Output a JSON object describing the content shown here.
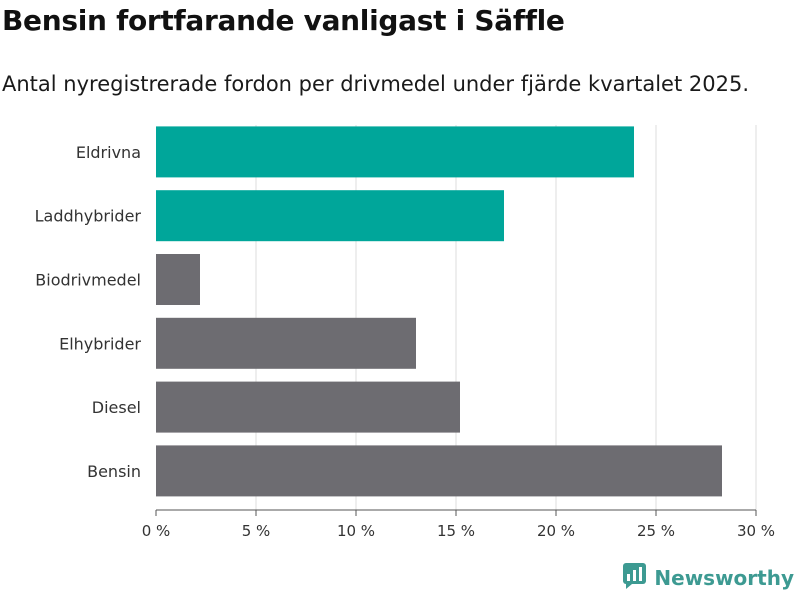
{
  "header": {
    "title": "Bensin fortfarande vanligast i Säffle",
    "subtitle": "Antal nyregistrerade fordon per drivmedel under fjärde kvartalet 2025."
  },
  "brand": {
    "name": "Newsworthy",
    "icon": "newsworthy-logo-icon"
  },
  "colors": {
    "highlight": "#00a69a",
    "default": "#6d6c71",
    "grid": "#dcdcdc",
    "axis": "#555555",
    "brand": "#3d9a92"
  },
  "chart_data": {
    "type": "bar",
    "orientation": "horizontal",
    "title": "Bensin fortfarande vanligast i Säffle",
    "subtitle": "Antal nyregistrerade fordon per drivmedel under fjärde kvartalet 2025.",
    "xlabel": "",
    "ylabel": "",
    "categories": [
      "Eldrivna",
      "Laddhybrider",
      "Biodrivmedel",
      "Elhybrider",
      "Diesel",
      "Bensin"
    ],
    "values": [
      23.9,
      17.4,
      2.2,
      13.0,
      15.2,
      28.3
    ],
    "highlight": [
      true,
      true,
      false,
      false,
      false,
      false
    ],
    "xlim": [
      0,
      30
    ],
    "xticks": [
      0,
      5,
      10,
      15,
      20,
      25,
      30
    ],
    "xtick_labels": [
      "0 %",
      "5 %",
      "10 %",
      "15 %",
      "20 %",
      "25 %",
      "30 %"
    ],
    "grid": true,
    "legend": "none"
  }
}
